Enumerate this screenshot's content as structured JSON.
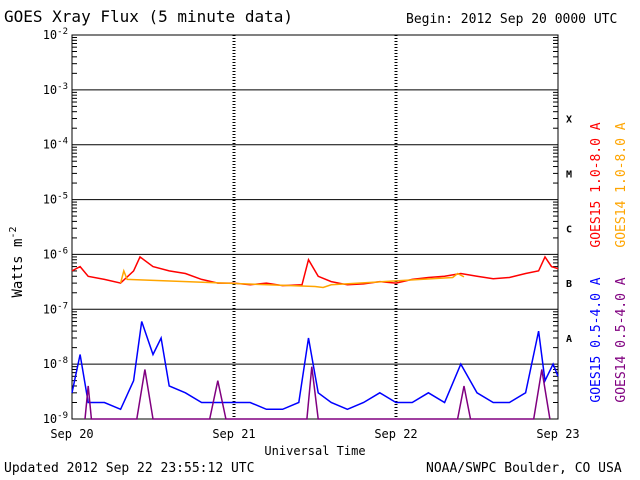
{
  "header": {
    "title": "GOES Xray Flux (5 minute data)",
    "begin": "Begin:  2012 Sep 20 0000 UTC"
  },
  "footer": {
    "updated": "Updated 2012 Sep 22 23:55:12 UTC",
    "credit": "NOAA/SWPC Boulder, CO USA"
  },
  "chart_data": {
    "type": "line",
    "title": "GOES Xray Flux (5 minute data)",
    "xlabel": "Universal Time",
    "ylabel": "Watts m",
    "ylabel_superscript": "-2",
    "yscale": "log",
    "ylim": [
      1e-09,
      0.01
    ],
    "xlim": [
      "2012-09-20",
      "2012-09-23"
    ],
    "xticks": [
      "Sep 20",
      "Sep 21",
      "Sep 22",
      "Sep 23"
    ],
    "yticks": [
      {
        "base": "10",
        "exp": "-9",
        "value": 1e-09
      },
      {
        "base": "10",
        "exp": "-8",
        "value": 1e-08
      },
      {
        "base": "10",
        "exp": "-7",
        "value": 1e-07
      },
      {
        "base": "10",
        "exp": "-6",
        "value": 1e-06
      },
      {
        "base": "10",
        "exp": "-5",
        "value": 1e-05
      },
      {
        "base": "10",
        "exp": "-4",
        "value": 0.0001
      },
      {
        "base": "10",
        "exp": "-3",
        "value": 0.001
      },
      {
        "base": "10",
        "exp": "-2",
        "value": 0.01
      }
    ],
    "flare_classes": [
      {
        "label": "X",
        "value": 0.0003
      },
      {
        "label": "M",
        "value": 3e-05
      },
      {
        "label": "C",
        "value": 3e-06
      },
      {
        "label": "B",
        "value": 3e-07
      },
      {
        "label": "A",
        "value": 3e-08
      }
    ],
    "grid": true,
    "legend": "right",
    "series": [
      {
        "name": "GOES15 1.0-8.0 A",
        "color": "#ff0000",
        "x": [
          0,
          0.05,
          0.1,
          0.2,
          0.3,
          0.38,
          0.42,
          0.5,
          0.6,
          0.7,
          0.8,
          0.9,
          1.0,
          1.1,
          1.2,
          1.3,
          1.42,
          1.46,
          1.52,
          1.6,
          1.7,
          1.8,
          1.9,
          2.0,
          2.1,
          2.2,
          2.3,
          2.4,
          2.5,
          2.6,
          2.7,
          2.8,
          2.88,
          2.92,
          2.96,
          3.0
        ],
        "y": [
          5e-07,
          6e-07,
          4e-07,
          3.5e-07,
          3e-07,
          5e-07,
          9e-07,
          6e-07,
          5e-07,
          4.5e-07,
          3.5e-07,
          3e-07,
          3e-07,
          2.8e-07,
          3e-07,
          2.7e-07,
          2.8e-07,
          8e-07,
          4e-07,
          3.2e-07,
          2.8e-07,
          2.9e-07,
          3.2e-07,
          3e-07,
          3.5e-07,
          3.8e-07,
          4e-07,
          4.5e-07,
          4e-07,
          3.6e-07,
          3.8e-07,
          4.5e-07,
          5e-07,
          9e-07,
          6e-07,
          5.5e-07
        ]
      },
      {
        "name": "GOES14 1.0-8.0 A",
        "color": "#ffa500",
        "x": [
          0.3,
          0.32,
          0.34,
          1.5,
          1.55,
          1.6,
          2.35,
          2.38,
          2.42
        ],
        "y": [
          3e-07,
          5e-07,
          3.5e-07,
          2.6e-07,
          2.5e-07,
          2.8e-07,
          3.8e-07,
          4.5e-07,
          3.9e-07
        ]
      },
      {
        "name": "GOES15 0.5-4.0 A",
        "color": "#0000ff",
        "x": [
          0,
          0.05,
          0.1,
          0.2,
          0.3,
          0.38,
          0.43,
          0.5,
          0.55,
          0.6,
          0.7,
          0.8,
          0.9,
          1.0,
          1.1,
          1.2,
          1.3,
          1.4,
          1.46,
          1.52,
          1.6,
          1.7,
          1.8,
          1.9,
          2.0,
          2.1,
          2.2,
          2.3,
          2.4,
          2.5,
          2.6,
          2.7,
          2.8,
          2.88,
          2.92,
          2.97,
          3.0
        ],
        "y": [
          3e-09,
          1.5e-08,
          2e-09,
          2e-09,
          1.5e-09,
          5e-09,
          6e-08,
          1.5e-08,
          3e-08,
          4e-09,
          3e-09,
          2e-09,
          2e-09,
          2e-09,
          2e-09,
          1.5e-09,
          1.5e-09,
          2e-09,
          3e-08,
          3e-09,
          2e-09,
          1.5e-09,
          2e-09,
          3e-09,
          2e-09,
          2e-09,
          3e-09,
          2e-09,
          1e-08,
          3e-09,
          2e-09,
          2e-09,
          3e-09,
          4e-08,
          5e-09,
          1e-08,
          6e-09
        ]
      },
      {
        "name": "GOES14 0.5-4.0 A",
        "color": "#800080",
        "x": [
          0.08,
          0.1,
          0.12,
          0.4,
          0.45,
          0.5,
          0.85,
          0.9,
          0.95,
          1.45,
          1.48,
          1.52,
          2.38,
          2.42,
          2.46,
          2.85,
          2.9,
          2.95
        ],
        "y": [
          1e-09,
          4e-09,
          1e-09,
          1e-09,
          8e-09,
          1e-09,
          1e-09,
          5e-09,
          1e-09,
          1e-09,
          9e-09,
          1e-09,
          1e-09,
          4e-09,
          1e-09,
          1e-09,
          8e-09,
          1e-09
        ]
      }
    ]
  }
}
